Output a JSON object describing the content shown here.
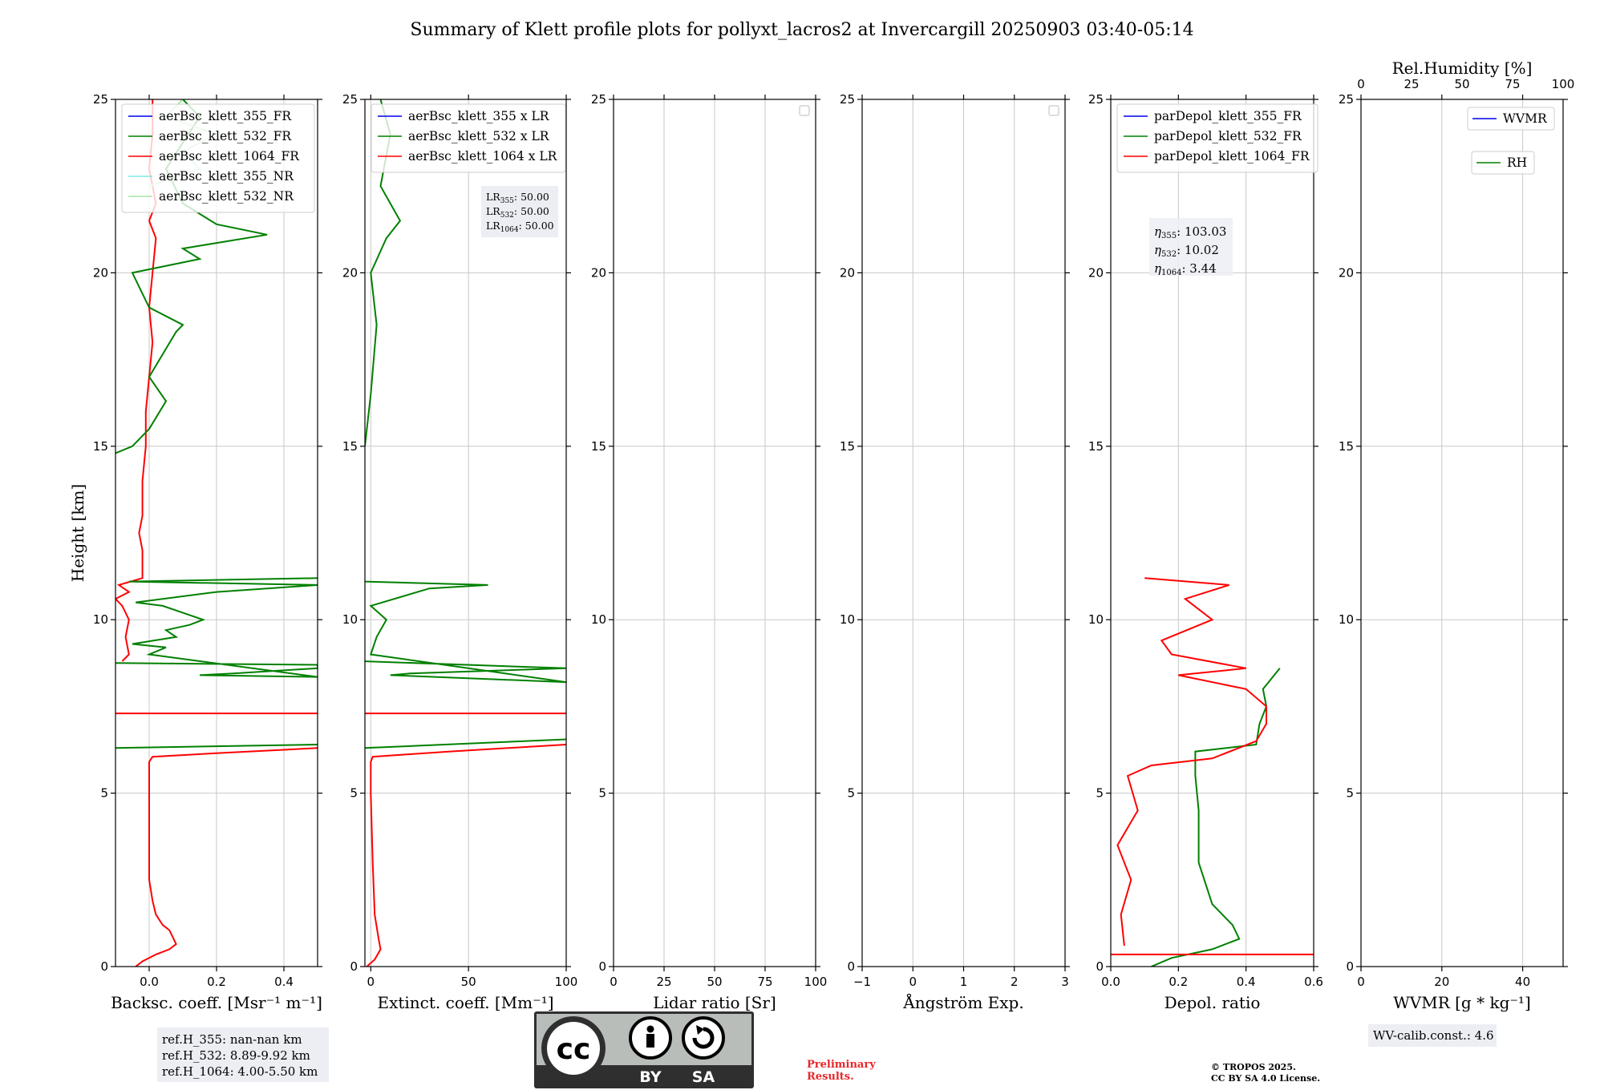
{
  "title": "Summary of Klett profile plots for pollyxt_lacros2 at Invercargill 20250903 03:40-05:14",
  "colors": {
    "c355": "#0000ee",
    "c532": "#008000",
    "c1064": "#ff0000",
    "c355nr": "#7fe8e0",
    "c532nr": "#a8e6a8",
    "grid": "#c8c8c8",
    "boxbg": "#eceef4"
  },
  "shared_y": {
    "label": "Height [km]",
    "ylim": [
      0,
      25
    ],
    "ticks": [
      0,
      5,
      10,
      15,
      20,
      25
    ],
    "tick_labels": [
      "0",
      "5",
      "10",
      "15",
      "20",
      "25"
    ]
  },
  "chart_data": [
    {
      "id": "backscatter",
      "type": "line",
      "xlabel": "Backsc. coeff. [Msr⁻¹ m⁻¹]",
      "xlim": [
        -0.1,
        0.5
      ],
      "xticks": [
        0.0,
        0.2,
        0.4
      ],
      "xtick_labels": [
        "0.0",
        "0.2",
        "0.4"
      ],
      "legend": [
        "aerBsc_klett_355_FR",
        "aerBsc_klett_532_FR",
        "aerBsc_klett_1064_FR",
        "aerBsc_klett_355_NR",
        "aerBsc_klett_532_NR"
      ],
      "series": [
        {
          "name": "aerBsc_klett_1064_FR",
          "color_key": "c1064",
          "points": [
            [
              -0.04,
              0.0
            ],
            [
              -0.02,
              0.15
            ],
            [
              0.02,
              0.35
            ],
            [
              0.06,
              0.5
            ],
            [
              0.08,
              0.65
            ],
            [
              0.07,
              0.85
            ],
            [
              0.06,
              1.05
            ],
            [
              0.04,
              1.2
            ],
            [
              0.02,
              1.5
            ],
            [
              0.01,
              1.9
            ],
            [
              0.0,
              2.5
            ],
            [
              0.0,
              3.5
            ],
            [
              0.0,
              4.5
            ],
            [
              0.0,
              5.5
            ],
            [
              0.0,
              5.9
            ],
            [
              0.01,
              6.05
            ],
            [
              0.2,
              6.15
            ],
            [
              0.4,
              6.25
            ],
            [
              0.5,
              6.3
            ]
          ]
        },
        {
          "name": "aerBsc_klett_1064_FR_upper",
          "color_key": "c1064",
          "points": [
            [
              -0.08,
              8.8
            ],
            [
              -0.06,
              9.0
            ],
            [
              -0.07,
              9.5
            ],
            [
              -0.06,
              10.0
            ],
            [
              -0.08,
              10.4
            ],
            [
              -0.1,
              10.6
            ],
            [
              -0.06,
              10.8
            ],
            [
              -0.09,
              11.0
            ],
            [
              -0.02,
              11.2
            ],
            [
              -0.02,
              12.0
            ],
            [
              -0.03,
              12.5
            ],
            [
              -0.02,
              13.0
            ],
            [
              -0.02,
              14.0
            ],
            [
              -0.01,
              15.0
            ],
            [
              -0.01,
              16.0
            ],
            [
              0.0,
              17.0
            ],
            [
              0.01,
              18.0
            ],
            [
              0.0,
              19.0
            ],
            [
              0.01,
              20.0
            ],
            [
              0.02,
              21.0
            ],
            [
              0.0,
              21.5
            ],
            [
              0.02,
              22.0
            ],
            [
              0.0,
              23.0
            ],
            [
              0.01,
              24.0
            ],
            [
              0.01,
              25.0
            ]
          ]
        },
        {
          "name": "aerBsc_klett_532_FR_low",
          "color_key": "c532",
          "points": [
            [
              -0.1,
              6.3
            ],
            [
              0.5,
              6.4
            ]
          ]
        },
        {
          "name": "aerBsc_klett_532_FR_mid",
          "color_key": "c532",
          "points": [
            [
              -0.1,
              8.75
            ],
            [
              0.5,
              8.7
            ],
            [
              0.5,
              8.6
            ],
            [
              0.25,
              8.45
            ],
            [
              0.15,
              8.4
            ],
            [
              0.5,
              8.35
            ],
            [
              0.0,
              9.0
            ],
            [
              0.05,
              9.2
            ],
            [
              -0.05,
              9.3
            ],
            [
              0.08,
              9.5
            ],
            [
              0.05,
              9.7
            ],
            [
              0.12,
              9.85
            ],
            [
              0.16,
              10.0
            ],
            [
              0.04,
              10.4
            ],
            [
              -0.04,
              10.5
            ],
            [
              0.2,
              10.8
            ],
            [
              0.5,
              11.0
            ],
            [
              -0.06,
              11.1
            ],
            [
              0.5,
              11.2
            ]
          ]
        },
        {
          "name": "aerBsc_klett_532_FR_high",
          "color_key": "c532",
          "points": [
            [
              -0.1,
              14.8
            ],
            [
              -0.05,
              15.0
            ],
            [
              0.0,
              15.5
            ],
            [
              0.05,
              16.3
            ],
            [
              0.0,
              17.0
            ],
            [
              0.08,
              18.3
            ],
            [
              0.1,
              18.5
            ],
            [
              0.0,
              19.0
            ],
            [
              -0.05,
              20.0
            ],
            [
              0.15,
              20.4
            ],
            [
              0.1,
              20.7
            ],
            [
              0.35,
              21.1
            ],
            [
              0.2,
              21.4
            ],
            [
              0.1,
              22.0
            ],
            [
              0.05,
              23.0
            ],
            [
              0.15,
              24.5
            ],
            [
              0.1,
              25.0
            ]
          ]
        },
        {
          "name": "aerBsc_klett_532_NR",
          "color_key": "c532nr",
          "points": [
            [
              0.0,
              22.5
            ],
            [
              0.15,
              23.0
            ],
            [
              0.1,
              23.5
            ],
            [
              0.2,
              24.0
            ],
            [
              0.05,
              24.5
            ],
            [
              0.1,
              25.0
            ]
          ]
        },
        {
          "name": "aerBsc_klett_1064_FR_spike",
          "color_key": "c1064",
          "points": [
            [
              -0.1,
              7.3
            ],
            [
              0.5,
              7.3
            ]
          ]
        }
      ],
      "info_box": [
        "ref.H_355: nan-nan km",
        "ref.H_532: 8.89-9.92 km",
        "ref.H_1064: 4.00-5.50 km"
      ]
    },
    {
      "id": "extinction",
      "type": "line",
      "xlabel": "Extinct. coeff. [Mm⁻¹]",
      "xlim": [
        -3,
        100
      ],
      "xticks": [
        0,
        50,
        100
      ],
      "xtick_labels": [
        "0",
        "50",
        "100"
      ],
      "legend": [
        "aerBsc_klett_355 x LR",
        "aerBsc_klett_532 x LR",
        "aerBsc_klett_1064 x LR"
      ],
      "series": [
        {
          "name": "aerBsc_klett_1064 x LR",
          "color_key": "c1064",
          "points": [
            [
              -2,
              0.0
            ],
            [
              2,
              0.2
            ],
            [
              5,
              0.5
            ],
            [
              4,
              0.8
            ],
            [
              2,
              1.5
            ],
            [
              1,
              3.0
            ],
            [
              0,
              5.0
            ],
            [
              0,
              5.9
            ],
            [
              1,
              6.05
            ],
            [
              40,
              6.2
            ],
            [
              100,
              6.4
            ]
          ]
        },
        {
          "name": "aerBsc_klett_532 x LR",
          "color_key": "c532",
          "points": [
            [
              -3,
              6.3
            ],
            [
              100,
              6.55
            ]
          ]
        },
        {
          "name": "aerBsc_klett_532 x LR_mid",
          "color_key": "c532",
          "points": [
            [
              -3,
              8.8
            ],
            [
              100,
              8.6
            ],
            [
              20,
              8.45
            ],
            [
              10,
              8.4
            ],
            [
              100,
              8.2
            ],
            [
              0,
              9.0
            ],
            [
              3,
              9.5
            ],
            [
              8,
              10.0
            ],
            [
              0,
              10.4
            ],
            [
              30,
              10.9
            ],
            [
              60,
              11.0
            ],
            [
              -3,
              11.1
            ]
          ]
        },
        {
          "name": "aerBsc_klett_532 x LR_high",
          "color_key": "c532",
          "points": [
            [
              -3,
              15.0
            ],
            [
              0,
              16.5
            ],
            [
              3,
              18.5
            ],
            [
              0,
              20.0
            ],
            [
              8,
              21.0
            ],
            [
              15,
              21.5
            ],
            [
              5,
              22.5
            ],
            [
              10,
              24.0
            ],
            [
              5,
              25.0
            ]
          ]
        },
        {
          "name": "aerBsc_klett_1064 x LR_spike",
          "color_key": "c1064",
          "points": [
            [
              -3,
              7.3
            ],
            [
              100,
              7.3
            ]
          ]
        }
      ],
      "lr_box": {
        "lines": [
          "LR355: 50.00",
          "LR532: 50.00",
          "LR1064: 50.00"
        ],
        "subs": [
          "355",
          "532",
          "1064"
        ],
        "value": "50.00"
      }
    },
    {
      "id": "lidar_ratio",
      "type": "line",
      "xlabel": "Lidar ratio [Sr]",
      "xlim": [
        0,
        100
      ],
      "xticks": [
        0,
        25,
        50,
        75,
        100
      ],
      "xtick_labels": [
        "0",
        "25",
        "50",
        "75",
        "100"
      ],
      "series": []
    },
    {
      "id": "angstrom",
      "type": "line",
      "xlabel": "Ångström Exp.",
      "xlim": [
        -1,
        3
      ],
      "xticks": [
        -1,
        0,
        1,
        2,
        3
      ],
      "xtick_labels": [
        "−1",
        "0",
        "1",
        "2",
        "3"
      ],
      "series": []
    },
    {
      "id": "depol",
      "type": "line",
      "xlabel": "Depol. ratio",
      "xlim": [
        0,
        0.6
      ],
      "xticks": [
        0.0,
        0.2,
        0.4,
        0.6
      ],
      "xtick_labels": [
        "0.0",
        "0.2",
        "0.4",
        "0.6"
      ],
      "legend": [
        "parDepol_klett_355_FR",
        "parDepol_klett_532_FR",
        "parDepol_klett_1064_FR"
      ],
      "series": [
        {
          "name": "parDepol_klett_532_FR",
          "color_key": "c532",
          "points": [
            [
              0.12,
              0.0
            ],
            [
              0.18,
              0.25
            ],
            [
              0.3,
              0.5
            ],
            [
              0.38,
              0.8
            ],
            [
              0.36,
              1.2
            ],
            [
              0.3,
              1.8
            ],
            [
              0.26,
              3.0
            ],
            [
              0.26,
              4.5
            ],
            [
              0.25,
              5.5
            ],
            [
              0.25,
              6.2
            ],
            [
              0.43,
              6.4
            ],
            [
              0.44,
              7.0
            ],
            [
              0.46,
              7.5
            ],
            [
              0.45,
              8.0
            ],
            [
              0.5,
              8.6
            ]
          ]
        },
        {
          "name": "parDepol_klett_1064_FR",
          "color_key": "c1064",
          "points": [
            [
              0.04,
              0.6
            ],
            [
              0.03,
              1.5
            ],
            [
              0.06,
              2.5
            ],
            [
              0.02,
              3.5
            ],
            [
              0.08,
              4.5
            ],
            [
              0.05,
              5.5
            ],
            [
              0.12,
              5.8
            ],
            [
              0.3,
              6.0
            ],
            [
              0.43,
              6.5
            ],
            [
              0.46,
              7.0
            ],
            [
              0.46,
              7.5
            ],
            [
              0.4,
              8.0
            ],
            [
              0.2,
              8.4
            ],
            [
              0.4,
              8.6
            ],
            [
              0.18,
              9.0
            ],
            [
              0.15,
              9.4
            ],
            [
              0.3,
              10.0
            ],
            [
              0.22,
              10.6
            ],
            [
              0.35,
              11.0
            ],
            [
              0.1,
              11.2
            ]
          ]
        },
        {
          "name": "parDepol_klett_1064_FR_base",
          "color_key": "c1064",
          "points": [
            [
              0.0,
              0.35
            ],
            [
              0.6,
              0.35
            ]
          ]
        }
      ],
      "eta_box": {
        "subs": [
          "355",
          "532",
          "1064"
        ],
        "values": [
          "103.03",
          "10.02",
          "3.44"
        ]
      }
    },
    {
      "id": "wvmr",
      "type": "line",
      "xlabel": "WVMR [g * kg⁻¹]",
      "xlim": [
        0,
        50
      ],
      "xticks": [
        0,
        20,
        40
      ],
      "xtick_labels": [
        "0",
        "20",
        "40"
      ],
      "top_label": "Rel.Humidity [%]",
      "top_ticks": [
        0,
        25,
        50,
        75,
        100
      ],
      "top_tick_labels": [
        "0",
        "25",
        "50",
        "75",
        "100"
      ],
      "legend": [
        "WVMR",
        "RH"
      ],
      "series": [],
      "info_box": [
        "WV-calib.const.: 4.6"
      ]
    }
  ],
  "footer": {
    "cc_top": "cc",
    "cc_by": "BY",
    "cc_sa": "SA",
    "prelim_line1": "Preliminary",
    "prelim_line2": "Results.",
    "copyright_line1": "© TROPOS 2025.",
    "copyright_line2": "CC BY SA 4.0 License."
  }
}
